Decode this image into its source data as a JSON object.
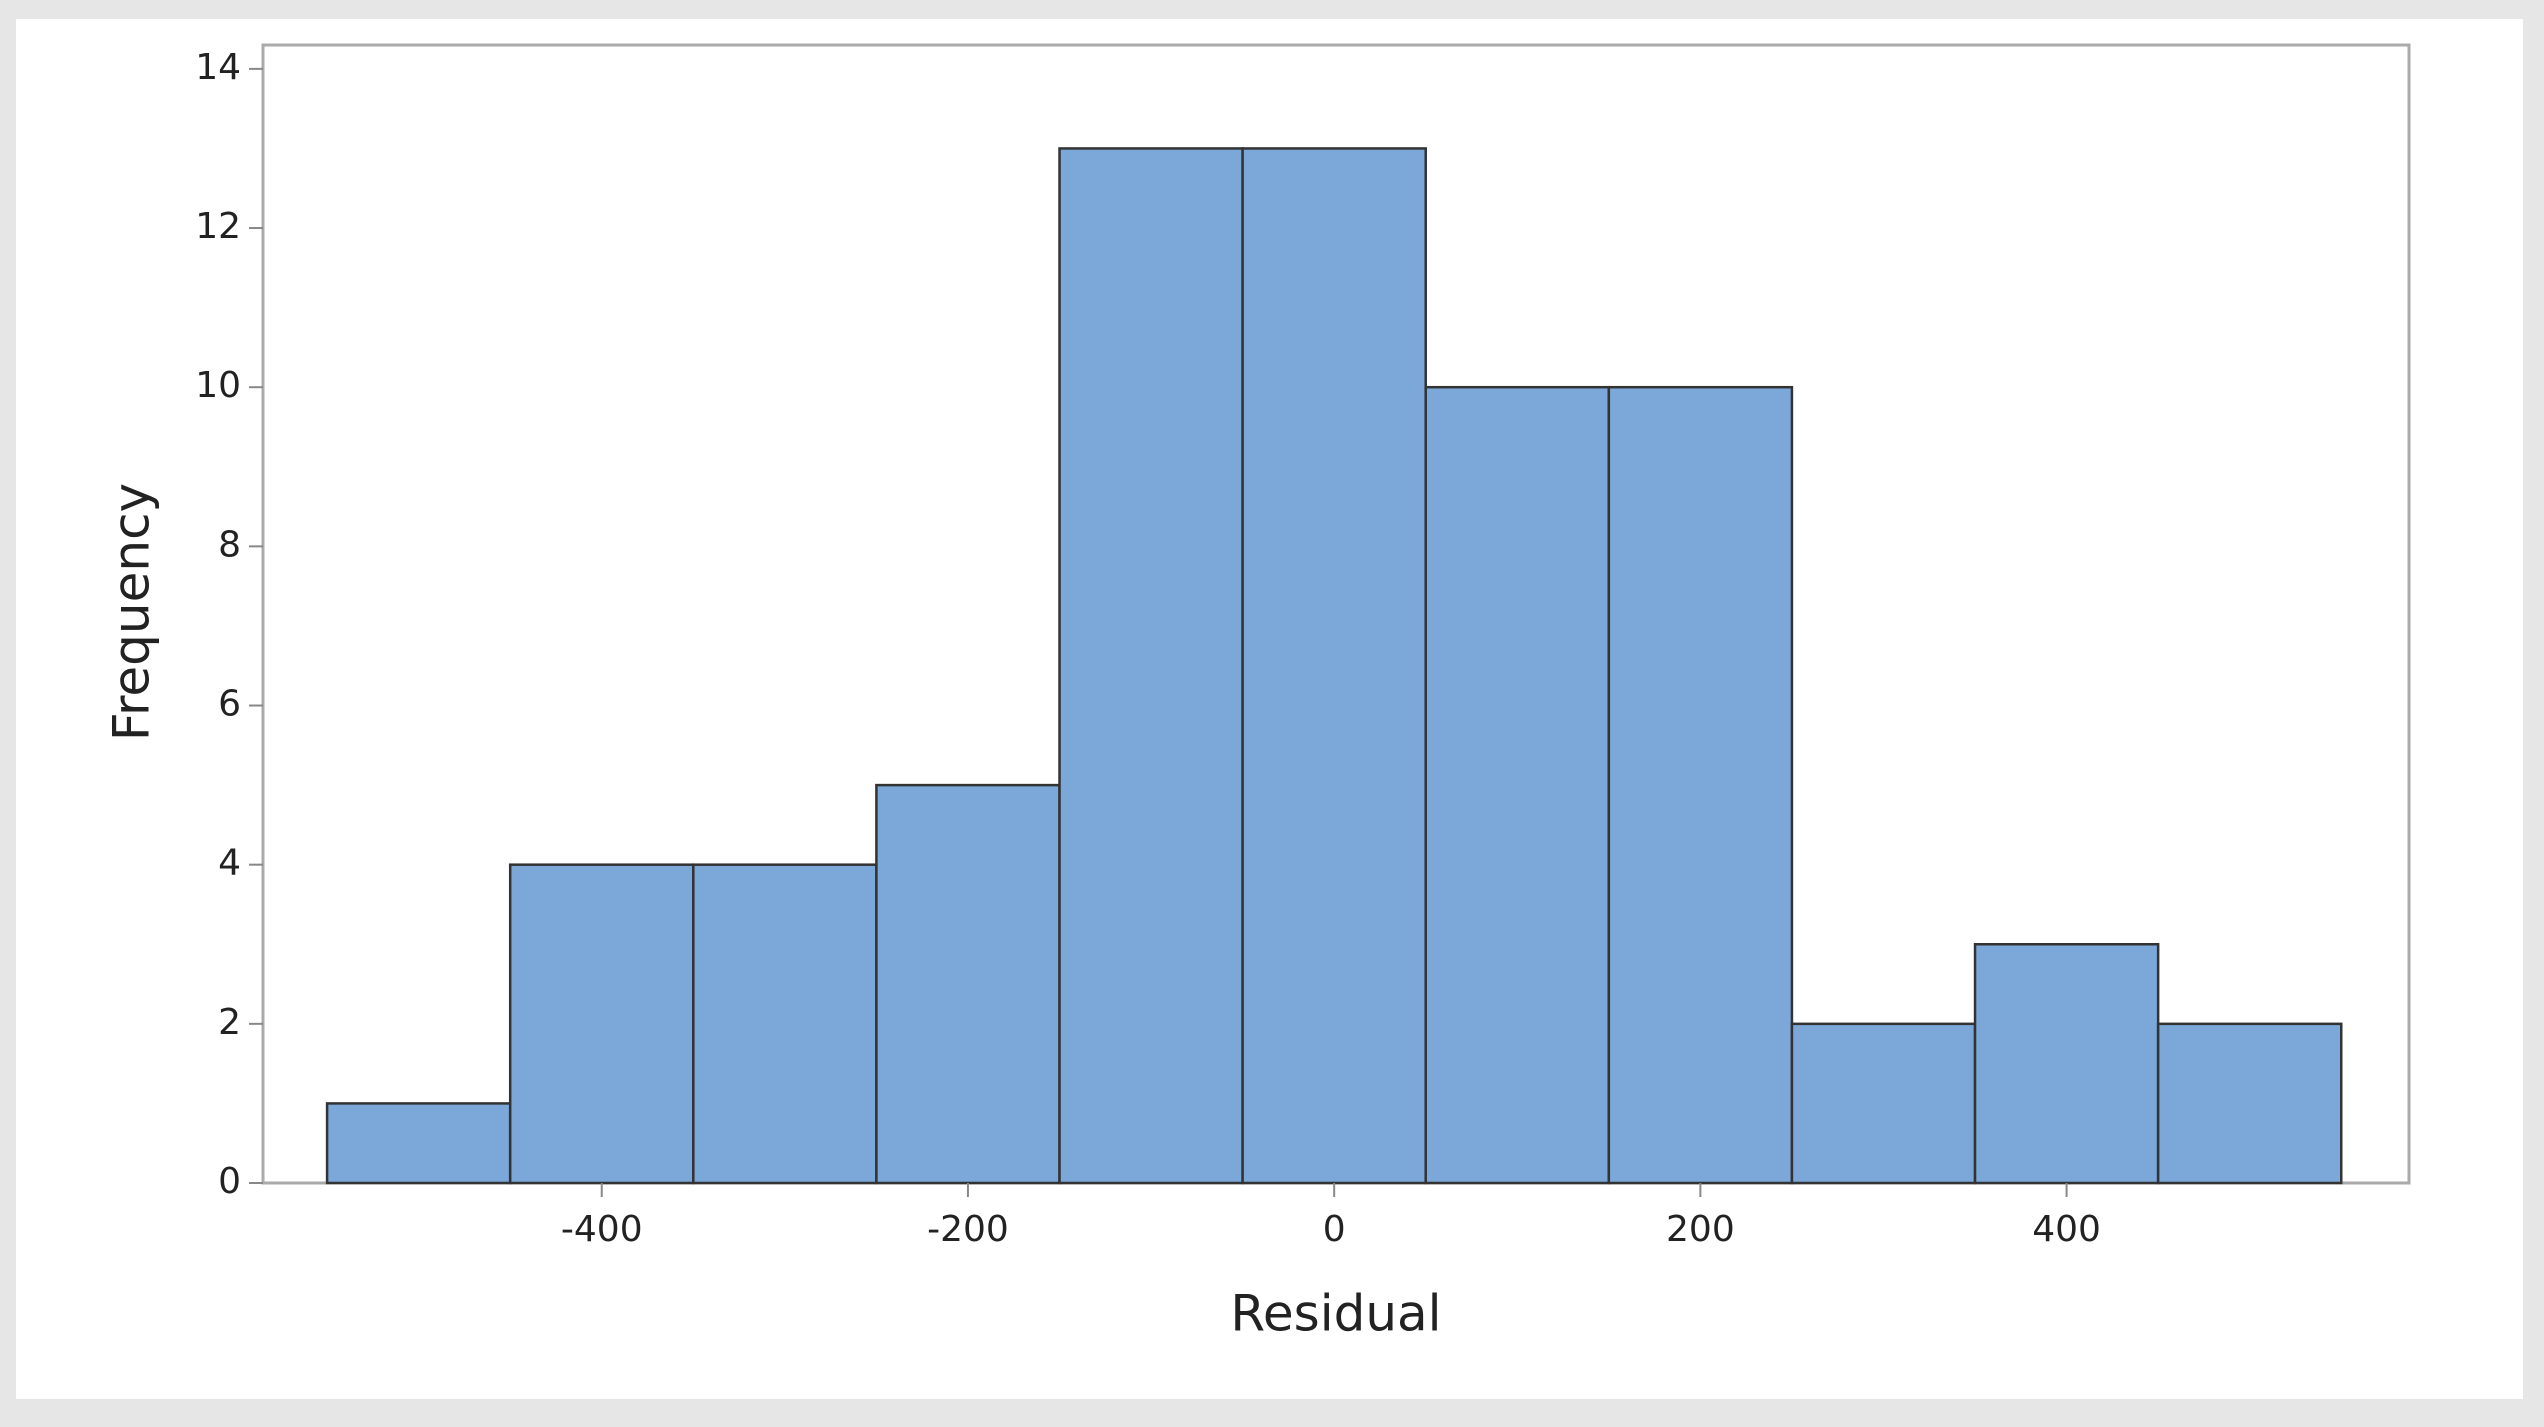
{
  "chart_data": {
    "type": "histogram",
    "xlabel": "Residual",
    "ylabel": "Frequency",
    "bins": [
      -550,
      -450,
      -350,
      -250,
      -150,
      -50,
      50,
      150,
      250,
      350,
      450,
      550
    ],
    "values": [
      1,
      4,
      4,
      5,
      13,
      13,
      10,
      10,
      2,
      3,
      2
    ],
    "color": "#7ba7d9",
    "xlim": [
      -585,
      587
    ],
    "xticks": [
      -400,
      -200,
      0,
      200,
      400
    ],
    "ylim": [
      0,
      14.3
    ],
    "yticks": [
      0,
      2,
      4,
      6,
      8,
      10,
      12,
      14
    ]
  }
}
